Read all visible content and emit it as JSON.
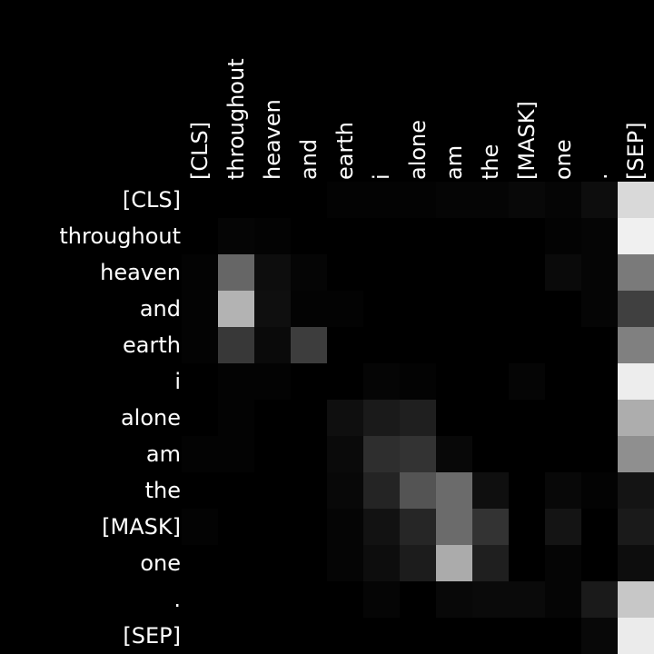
{
  "chart_data": {
    "type": "heatmap",
    "title": "",
    "xlabel": "",
    "ylabel": "",
    "x_labels": [
      "[CLS]",
      "throughout",
      "heaven",
      "and",
      "earth",
      "i",
      "alone",
      "am",
      "the",
      "[MASK]",
      "one",
      ".",
      "[SEP]"
    ],
    "y_labels": [
      "[CLS]",
      "throughout",
      "heaven",
      "and",
      "earth",
      "i",
      "alone",
      "am",
      "the",
      "[MASK]",
      "one",
      ".",
      "[SEP]"
    ],
    "value_range": [
      0,
      1
    ],
    "colormap": "grayscale",
    "color_low": "#000000",
    "color_high": "#ffffff",
    "values": [
      [
        0.0,
        0.0,
        0.0,
        0.0,
        0.01,
        0.01,
        0.01,
        0.02,
        0.02,
        0.03,
        0.02,
        0.05,
        0.85
      ],
      [
        0.0,
        0.02,
        0.01,
        0.0,
        0.0,
        0.0,
        0.0,
        0.0,
        0.0,
        0.0,
        0.01,
        0.02,
        0.94
      ],
      [
        0.01,
        0.4,
        0.05,
        0.02,
        0.0,
        0.0,
        0.0,
        0.0,
        0.0,
        0.0,
        0.04,
        0.02,
        0.48
      ],
      [
        0.01,
        0.7,
        0.06,
        0.01,
        0.01,
        0.0,
        0.0,
        0.0,
        0.0,
        0.0,
        0.0,
        0.02,
        0.25
      ],
      [
        0.01,
        0.22,
        0.04,
        0.24,
        0.0,
        0.0,
        0.0,
        0.0,
        0.0,
        0.0,
        0.0,
        0.0,
        0.5
      ],
      [
        0.0,
        0.01,
        0.01,
        0.0,
        0.0,
        0.02,
        0.01,
        0.0,
        0.0,
        0.02,
        0.0,
        0.0,
        0.93
      ],
      [
        0.0,
        0.01,
        0.0,
        0.0,
        0.06,
        0.1,
        0.12,
        0.0,
        0.0,
        0.0,
        0.0,
        0.0,
        0.68
      ],
      [
        0.01,
        0.01,
        0.0,
        0.0,
        0.04,
        0.18,
        0.2,
        0.03,
        0.0,
        0.0,
        0.0,
        0.0,
        0.56
      ],
      [
        0.0,
        0.0,
        0.0,
        0.0,
        0.03,
        0.14,
        0.33,
        0.42,
        0.06,
        0.0,
        0.03,
        0.01,
        0.08
      ],
      [
        0.01,
        0.0,
        0.0,
        0.0,
        0.02,
        0.07,
        0.15,
        0.42,
        0.2,
        0.0,
        0.08,
        0.0,
        0.1
      ],
      [
        0.0,
        0.0,
        0.0,
        0.0,
        0.02,
        0.05,
        0.11,
        0.67,
        0.12,
        0.0,
        0.02,
        0.0,
        0.05
      ],
      [
        0.0,
        0.0,
        0.0,
        0.0,
        0.0,
        0.02,
        0.0,
        0.03,
        0.04,
        0.04,
        0.02,
        0.1,
        0.78
      ],
      [
        0.0,
        0.0,
        0.0,
        0.0,
        0.0,
        0.0,
        0.0,
        0.0,
        0.0,
        0.0,
        0.0,
        0.03,
        0.92
      ]
    ]
  }
}
